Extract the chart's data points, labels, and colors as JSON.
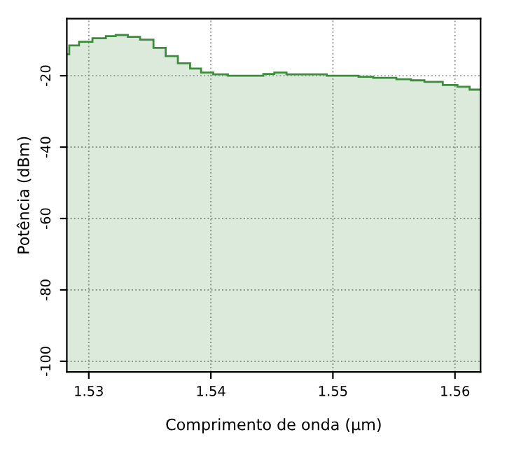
{
  "chart_data": {
    "type": "histogram",
    "xlabel": "Comprimento de onda (µm)",
    "ylabel": "Potência (dBm)",
    "bins": [
      1.5282,
      1.5284,
      1.5292,
      1.5303,
      1.5314,
      1.5322,
      1.5332,
      1.5342,
      1.5353,
      1.5363,
      1.5373,
      1.5383,
      1.5392,
      1.5402,
      1.5414,
      1.5443,
      1.5452,
      1.5462,
      1.5495,
      1.5521,
      1.5533,
      1.5552,
      1.5564,
      1.5575,
      1.559,
      1.5602,
      1.5612,
      1.5621
    ],
    "values": [
      -14,
      -11.5,
      -10.5,
      -9.5,
      -8.9,
      -8.6,
      -9.1,
      -9.9,
      -12.2,
      -14.5,
      -16.5,
      -18,
      -19.1,
      -19.6,
      -20,
      -19.5,
      -19.1,
      -19.6,
      -20,
      -20.3,
      -20.6,
      -21,
      -21.3,
      -21.7,
      -22.6,
      -23.1,
      -23.9
    ],
    "color": "#3d8b3d",
    "xlim": [
      1.5282,
      1.5621
    ],
    "ylim": [
      -103,
      -4
    ],
    "xticks": [
      1.53,
      1.54,
      1.55,
      1.56
    ],
    "yticks": [
      -100,
      -80,
      -60,
      -40,
      -20
    ],
    "grid": true
  }
}
